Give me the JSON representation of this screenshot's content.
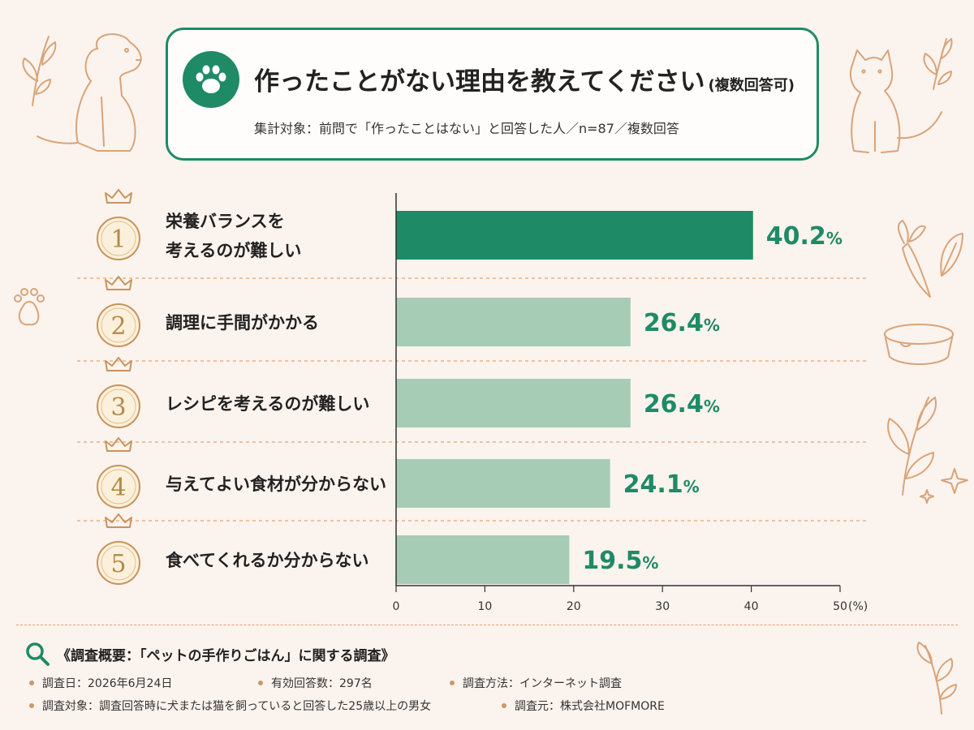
{
  "header": {
    "title": "作ったことがない理由を教えてください",
    "title_suffix": "(複数回答可)",
    "subtitle": "集計対象：前問で「作ったことはない」と回答した人／n=87／複数回答"
  },
  "chart_data": {
    "type": "bar",
    "orientation": "horizontal",
    "categories": [
      "栄養バランスを考えるのが難しい",
      "調理に手間がかかる",
      "レシピを考えるのが難しい",
      "与えてよい食材が分からない",
      "食べてくれるか分からない"
    ],
    "category_lines": [
      [
        "栄養バランスを",
        "考えるのが難しい"
      ],
      [
        "調理に手間がかかる"
      ],
      [
        "レシピを考えるのが難しい"
      ],
      [
        "与えてよい食材が分からない"
      ],
      [
        "食べてくれるか分からない"
      ]
    ],
    "ranks": [
      "1",
      "2",
      "3",
      "4",
      "5"
    ],
    "values": [
      40.2,
      26.4,
      26.4,
      24.1,
      19.5
    ],
    "value_labels": [
      "40.2",
      "26.4",
      "26.4",
      "24.1",
      "19.5"
    ],
    "value_unit": "%",
    "xlim": [
      0,
      50
    ],
    "xticks": [
      0,
      10,
      20,
      30,
      40,
      50
    ],
    "xtick_labels": [
      "0",
      "10",
      "20",
      "30",
      "40",
      "50"
    ],
    "xunit": "(%)",
    "colors": {
      "top": "#1f8a66",
      "rest": "#a6ccb6"
    }
  },
  "survey": {
    "title": "《調査概要：「ペットの手作りごはん」に関する調査》",
    "date": "調査日：2026年6月24日",
    "responses": "有効回答数：297名",
    "method": "調査方法：インターネット調査",
    "target": "調査対象：調査回答時に犬または猫を飼っていると回答した25歳以上の男女",
    "source": "調査元：株式会社MOFMORE"
  },
  "icons": {
    "header": "paw-icon",
    "survey": "magnifier-icon",
    "rank": "crown-icon"
  }
}
